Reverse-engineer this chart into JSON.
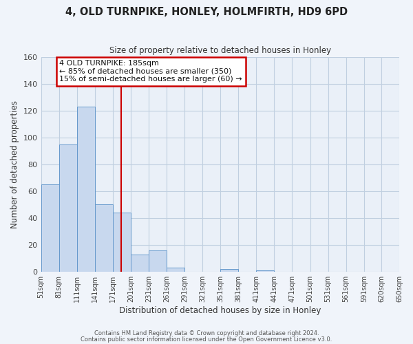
{
  "title": "4, OLD TURNPIKE, HONLEY, HOLMFIRTH, HD9 6PD",
  "subtitle": "Size of property relative to detached houses in Honley",
  "xlabel": "Distribution of detached houses by size in Honley",
  "ylabel": "Number of detached properties",
  "footnote1": "Contains HM Land Registry data © Crown copyright and database right 2024.",
  "footnote2": "Contains public sector information licensed under the Open Government Licence v3.0.",
  "annotation_line1": "4 OLD TURNPIKE: 185sqm",
  "annotation_line2": "← 85% of detached houses are smaller (350)",
  "annotation_line3": "15% of semi-detached houses are larger (60) →",
  "bar_edges": [
    51,
    81,
    111,
    141,
    171,
    201,
    231,
    261,
    291,
    321,
    351,
    381,
    411,
    441,
    471,
    501,
    531,
    561,
    591,
    620,
    650
  ],
  "bar_heights": [
    65,
    95,
    123,
    50,
    44,
    13,
    16,
    3,
    0,
    0,
    2,
    0,
    1,
    0,
    0,
    0,
    0,
    0,
    0,
    0
  ],
  "bar_color": "#c8d8ee",
  "bar_edge_color": "#6699cc",
  "vline_x": 185,
  "vline_color": "#cc0000",
  "ylim": [
    0,
    160
  ],
  "yticks": [
    0,
    20,
    40,
    60,
    80,
    100,
    120,
    140,
    160
  ],
  "xlim_left": 51,
  "xlim_right": 650,
  "bg_color": "#f0f4fa",
  "plot_bg_color": "#eaf0f8",
  "grid_color": "#c0cfe0",
  "annotation_box_edge_color": "#cc0000",
  "tick_label_color": "#444444",
  "title_color": "#222222",
  "subtitle_color": "#333333",
  "ylabel_color": "#333333",
  "xlabel_color": "#333333",
  "footnote_color": "#555555"
}
